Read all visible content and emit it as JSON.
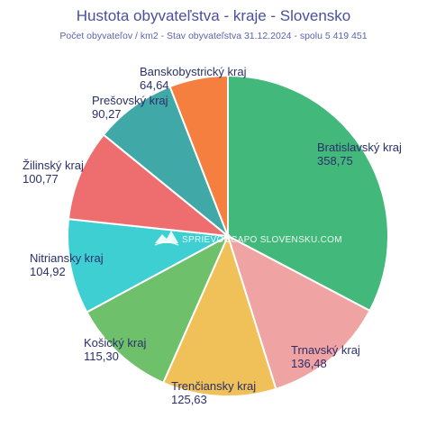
{
  "chart_data": {
    "type": "pie",
    "title": "Hustota obyvateľstva - kraje - Slovensko",
    "subtitle": "Počet obyvateľov / km2 - Stav obyvateľstva 31.12.2024 - spolu 5 419 451",
    "slices": [
      {
        "label": "Bratislavský kraj",
        "value": 358.75,
        "value_text": "358,75",
        "color": "#43b87b"
      },
      {
        "label": "Trnavský kraj",
        "value": 136.48,
        "value_text": "136,48",
        "color": "#f0a3a3"
      },
      {
        "label": "Trenčiansky kraj",
        "value": 125.63,
        "value_text": "125,63",
        "color": "#efc158"
      },
      {
        "label": "Košický kraj",
        "value": 115.3,
        "value_text": "115,30",
        "color": "#6fc06a"
      },
      {
        "label": "Nitriansky kraj",
        "value": 104.92,
        "value_text": "104,92",
        "color": "#3ecfd2"
      },
      {
        "label": "Žilinský kraj",
        "value": 100.77,
        "value_text": "100,77",
        "color": "#ee6e6f"
      },
      {
        "label": "Prešovský kraj",
        "value": 90.27,
        "value_text": "90,27",
        "color": "#41a8a8"
      },
      {
        "label": "Banskobystrický kraj",
        "value": 64.64,
        "value_text": "64,64",
        "color": "#f57f3f"
      }
    ]
  },
  "watermark": "SPRIEVODCAPO SLOVENSKU.COM",
  "logo_icon": "mountain-logo-icon"
}
